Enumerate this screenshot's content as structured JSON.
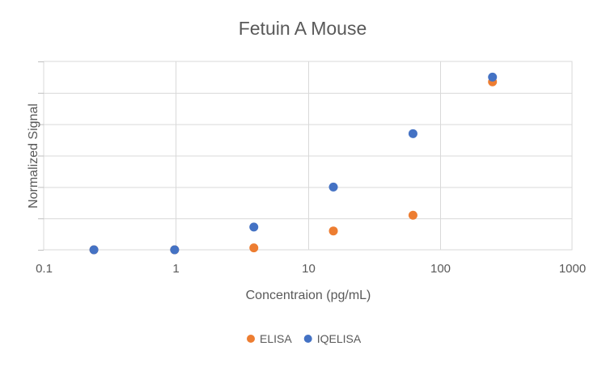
{
  "chart_data": {
    "type": "scatter",
    "title": "Fetuin A Mouse",
    "xlabel": "Concentraion (pg/mL)",
    "ylabel": "Normalized Signal",
    "x_scale": "log",
    "xlim": [
      0.1,
      1000
    ],
    "x_tick_labels": [
      "0.1",
      "1",
      "10",
      "100",
      "1000"
    ],
    "x_tick_values": [
      0.1,
      1,
      10,
      100,
      1000
    ],
    "y_tick_count": 6,
    "grid": true,
    "legend_position": "bottom",
    "series": [
      {
        "name": "ELISA",
        "color": "#ED7D31",
        "x": [
          0.24,
          0.98,
          3.9,
          15.6,
          62.5,
          250
        ],
        "y": [
          0.0,
          0.0,
          0.012,
          0.12,
          0.22,
          1.07
        ]
      },
      {
        "name": "IQELISA",
        "color": "#4472C4",
        "x": [
          0.24,
          0.98,
          3.9,
          15.6,
          62.5,
          250
        ],
        "y": [
          0.0,
          0.0,
          0.145,
          0.4,
          0.74,
          1.1
        ]
      }
    ]
  }
}
